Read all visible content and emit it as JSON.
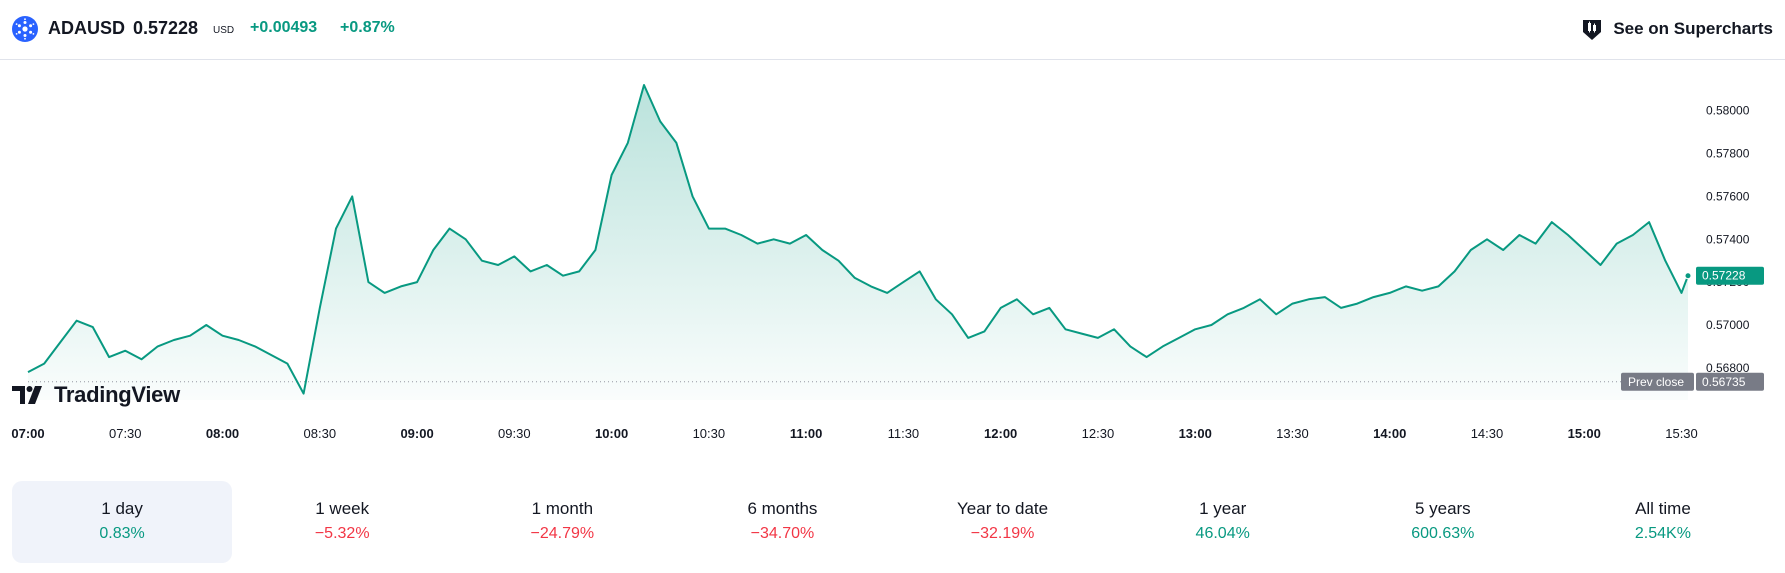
{
  "header": {
    "symbol": "ADAUSD",
    "price": "0.57228",
    "currency": "USD",
    "change": "+0.00493",
    "change_percent": "+0.87%",
    "superchart_label": "See on Supercharts",
    "coin_icon": "cardano-icon",
    "superchart_icon": "candlestick-icon"
  },
  "logo": {
    "text": "TradingView"
  },
  "chart_data": {
    "type": "area",
    "series": [
      {
        "x": [
          "07:00",
          "07:05",
          "07:10",
          "07:15",
          "07:20",
          "07:25",
          "07:30",
          "07:35",
          "07:40",
          "07:45",
          "07:50",
          "07:55",
          "08:00",
          "08:05",
          "08:10",
          "08:15",
          "08:20",
          "08:25",
          "08:30",
          "08:35",
          "08:40",
          "08:45",
          "08:50",
          "08:55",
          "09:00",
          "09:05",
          "09:10",
          "09:15",
          "09:20",
          "09:25",
          "09:30",
          "09:35",
          "09:40",
          "09:45",
          "09:50",
          "09:55",
          "10:00",
          "10:05",
          "10:10",
          "10:15",
          "10:20",
          "10:25",
          "10:30",
          "10:35",
          "10:40",
          "10:45",
          "10:50",
          "10:55",
          "11:00",
          "11:05",
          "11:10",
          "11:15",
          "11:20",
          "11:25",
          "11:30",
          "11:35",
          "11:40",
          "11:45",
          "11:50",
          "11:55",
          "12:00",
          "12:05",
          "12:10",
          "12:15",
          "12:20",
          "12:25",
          "12:30",
          "12:35",
          "12:40",
          "12:45",
          "12:50",
          "12:55",
          "13:00",
          "13:05",
          "13:10",
          "13:15",
          "13:20",
          "13:25",
          "13:30",
          "13:35",
          "13:40",
          "13:45",
          "13:50",
          "13:55",
          "14:00",
          "14:05",
          "14:10",
          "14:15",
          "14:20",
          "14:25",
          "14:30",
          "14:35",
          "14:40",
          "14:45",
          "14:50",
          "14:55",
          "15:00",
          "15:05",
          "15:10",
          "15:15",
          "15:20",
          "15:25",
          "15:30",
          "15:32"
        ],
        "values": [
          0.5678,
          0.5682,
          0.5692,
          0.5702,
          0.5699,
          0.5685,
          0.5688,
          0.5684,
          0.569,
          0.5693,
          0.5695,
          0.57,
          0.5695,
          0.5693,
          0.569,
          0.5686,
          0.5682,
          0.5668,
          0.5708,
          0.5745,
          0.576,
          0.572,
          0.5715,
          0.5718,
          0.572,
          0.5735,
          0.5745,
          0.574,
          0.573,
          0.5728,
          0.5732,
          0.5725,
          0.5728,
          0.5723,
          0.5725,
          0.5735,
          0.577,
          0.5785,
          0.5812,
          0.5795,
          0.5785,
          0.576,
          0.5745,
          0.5745,
          0.5742,
          0.5738,
          0.574,
          0.5738,
          0.5742,
          0.5735,
          0.573,
          0.5722,
          0.5718,
          0.5715,
          0.572,
          0.5725,
          0.5712,
          0.5705,
          0.5694,
          0.5697,
          0.5708,
          0.5712,
          0.5705,
          0.5708,
          0.5698,
          0.5696,
          0.5694,
          0.5698,
          0.569,
          0.5685,
          0.569,
          0.5694,
          0.5698,
          0.57,
          0.5705,
          0.5708,
          0.5712,
          0.5705,
          0.571,
          0.5712,
          0.5713,
          0.5708,
          0.571,
          0.5713,
          0.5715,
          0.5718,
          0.5716,
          0.5718,
          0.5725,
          0.5735,
          0.574,
          0.5735,
          0.5742,
          0.5738,
          0.5748,
          0.5742,
          0.5735,
          0.5728,
          0.5738,
          0.5742,
          0.5748,
          0.573,
          0.5715,
          0.5723
        ]
      }
    ],
    "ylim": [
      0.5665,
      0.5819
    ],
    "y_ticks": [
      "0.58000",
      "0.57800",
      "0.57600",
      "0.57400",
      "0.57200",
      "0.57000",
      "0.56800"
    ],
    "x_ticks": [
      {
        "label": "07:00",
        "bold": true
      },
      {
        "label": "07:30",
        "bold": false
      },
      {
        "label": "08:00",
        "bold": true
      },
      {
        "label": "08:30",
        "bold": false
      },
      {
        "label": "09:00",
        "bold": true
      },
      {
        "label": "09:30",
        "bold": false
      },
      {
        "label": "10:00",
        "bold": true
      },
      {
        "label": "10:30",
        "bold": false
      },
      {
        "label": "11:00",
        "bold": true
      },
      {
        "label": "11:30",
        "bold": false
      },
      {
        "label": "12:00",
        "bold": true
      },
      {
        "label": "12:30",
        "bold": false
      },
      {
        "label": "13:00",
        "bold": true
      },
      {
        "label": "13:30",
        "bold": false
      },
      {
        "label": "14:00",
        "bold": true
      },
      {
        "label": "14:30",
        "bold": false
      },
      {
        "label": "15:00",
        "bold": true
      },
      {
        "label": "15:30",
        "bold": false
      }
    ],
    "last_price_label": "0.57228",
    "prev_close": {
      "label": "Prev close",
      "value": "0.56735",
      "y": 0.56735
    },
    "line_color": "#089981",
    "grid": false,
    "legend": "none"
  },
  "periods": [
    {
      "label": "1 day",
      "value": "0.83%",
      "trend": "pos",
      "active": true
    },
    {
      "label": "1 week",
      "value": "−5.32%",
      "trend": "neg",
      "active": false
    },
    {
      "label": "1 month",
      "value": "−24.79%",
      "trend": "neg",
      "active": false
    },
    {
      "label": "6 months",
      "value": "−34.70%",
      "trend": "neg",
      "active": false
    },
    {
      "label": "Year to date",
      "value": "−32.19%",
      "trend": "neg",
      "active": false
    },
    {
      "label": "1 year",
      "value": "46.04%",
      "trend": "pos",
      "active": false
    },
    {
      "label": "5 years",
      "value": "600.63%",
      "trend": "pos",
      "active": false
    },
    {
      "label": "All time",
      "value": "2.54K%",
      "trend": "pos",
      "active": false
    }
  ],
  "colors": {
    "accent": "#089981",
    "negative": "#f23645",
    "brand": "#2962ff"
  }
}
